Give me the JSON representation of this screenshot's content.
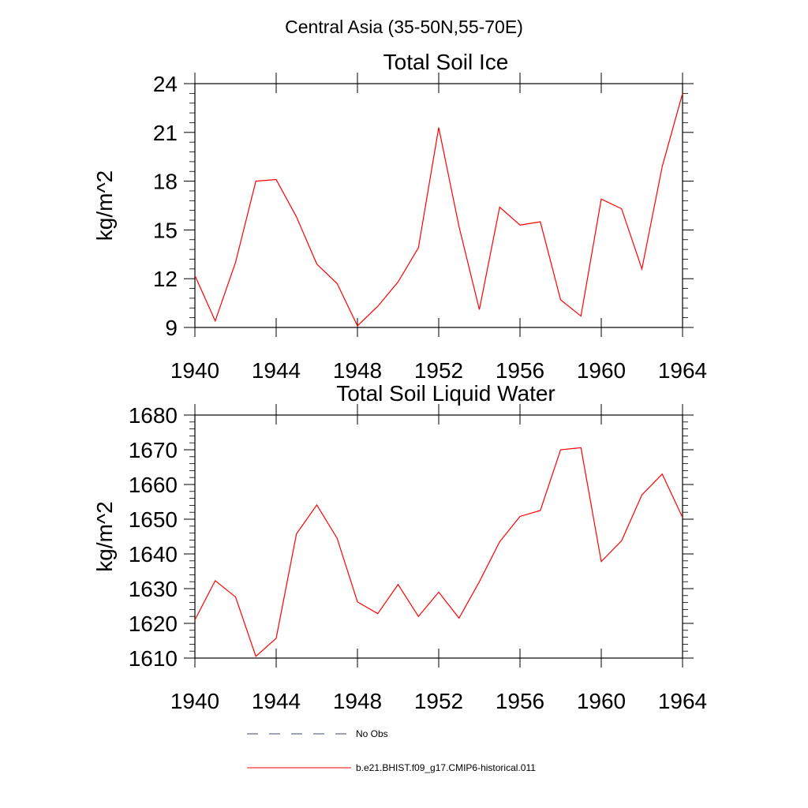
{
  "title": "Central Asia (35-50N,55-70E)",
  "colors": {
    "model": "#ff0000",
    "obs": "#3d4a7a",
    "axis": "#000000"
  },
  "chart_data": [
    {
      "type": "line",
      "title": "Total Soil Ice",
      "ylabel": "kg/m^2",
      "xlim": [
        1940,
        1964
      ],
      "ylim": [
        9,
        24
      ],
      "xticks": [
        1940,
        1944,
        1948,
        1952,
        1956,
        1960,
        1964
      ],
      "yticks": [
        9,
        12,
        15,
        18,
        21,
        24
      ],
      "xtick_labels": [
        "1940",
        "1944",
        "1948",
        "1952",
        "1956",
        "1960",
        "1964"
      ],
      "ytick_labels": [
        "9",
        "12",
        "15",
        "18",
        "21",
        "24"
      ],
      "x": [
        1940,
        1941,
        1942,
        1943,
        1944,
        1945,
        1946,
        1947,
        1948,
        1949,
        1950,
        1951,
        1952,
        1953,
        1954,
        1955,
        1956,
        1957,
        1958,
        1959,
        1960,
        1961,
        1962,
        1963,
        1964
      ],
      "series": [
        {
          "name": "b.e21.BHIST.f09_g17.CMIP6-historical.011",
          "values": [
            12.2,
            9.4,
            13.0,
            18.0,
            18.1,
            15.8,
            12.9,
            11.7,
            9.1,
            10.3,
            11.8,
            13.9,
            21.3,
            15.2,
            10.1,
            16.4,
            15.3,
            15.5,
            10.7,
            9.7,
            16.9,
            16.3,
            12.6,
            18.9,
            23.4
          ]
        }
      ]
    },
    {
      "type": "line",
      "title": "Total Soil Liquid Water",
      "ylabel": "kg/m^2",
      "xlim": [
        1940,
        1964
      ],
      "ylim": [
        1610,
        1680
      ],
      "xticks": [
        1940,
        1944,
        1948,
        1952,
        1956,
        1960,
        1964
      ],
      "yticks": [
        1610,
        1620,
        1630,
        1640,
        1650,
        1660,
        1670,
        1680
      ],
      "xtick_labels": [
        "1940",
        "1944",
        "1948",
        "1952",
        "1956",
        "1960",
        "1964"
      ],
      "ytick_labels": [
        "1610",
        "1620",
        "1630",
        "1640",
        "1650",
        "1660",
        "1670",
        "1680"
      ],
      "x": [
        1940,
        1941,
        1942,
        1943,
        1944,
        1945,
        1946,
        1947,
        1948,
        1949,
        1950,
        1951,
        1952,
        1953,
        1954,
        1955,
        1956,
        1957,
        1958,
        1959,
        1960,
        1961,
        1962,
        1963,
        1964
      ],
      "series": [
        {
          "name": "b.e21.BHIST.f09_g17.CMIP6-historical.011",
          "values": [
            1621,
            1632.3,
            1627.6,
            1610.5,
            1615.7,
            1645.8,
            1654.1,
            1644.5,
            1626.2,
            1622.8,
            1631.2,
            1622.0,
            1629.0,
            1621.5,
            1632.0,
            1643.5,
            1650.8,
            1652.5,
            1670.0,
            1670.6,
            1637.8,
            1643.8,
            1657.0,
            1663.0,
            1650.5
          ]
        }
      ]
    }
  ],
  "legend": [
    {
      "label": "No Obs",
      "style": "dashed",
      "color": "#3d4a7a"
    },
    {
      "label": "b.e21.BHIST.f09_g17.CMIP6-historical.011",
      "style": "solid",
      "color": "#ff0000"
    }
  ]
}
